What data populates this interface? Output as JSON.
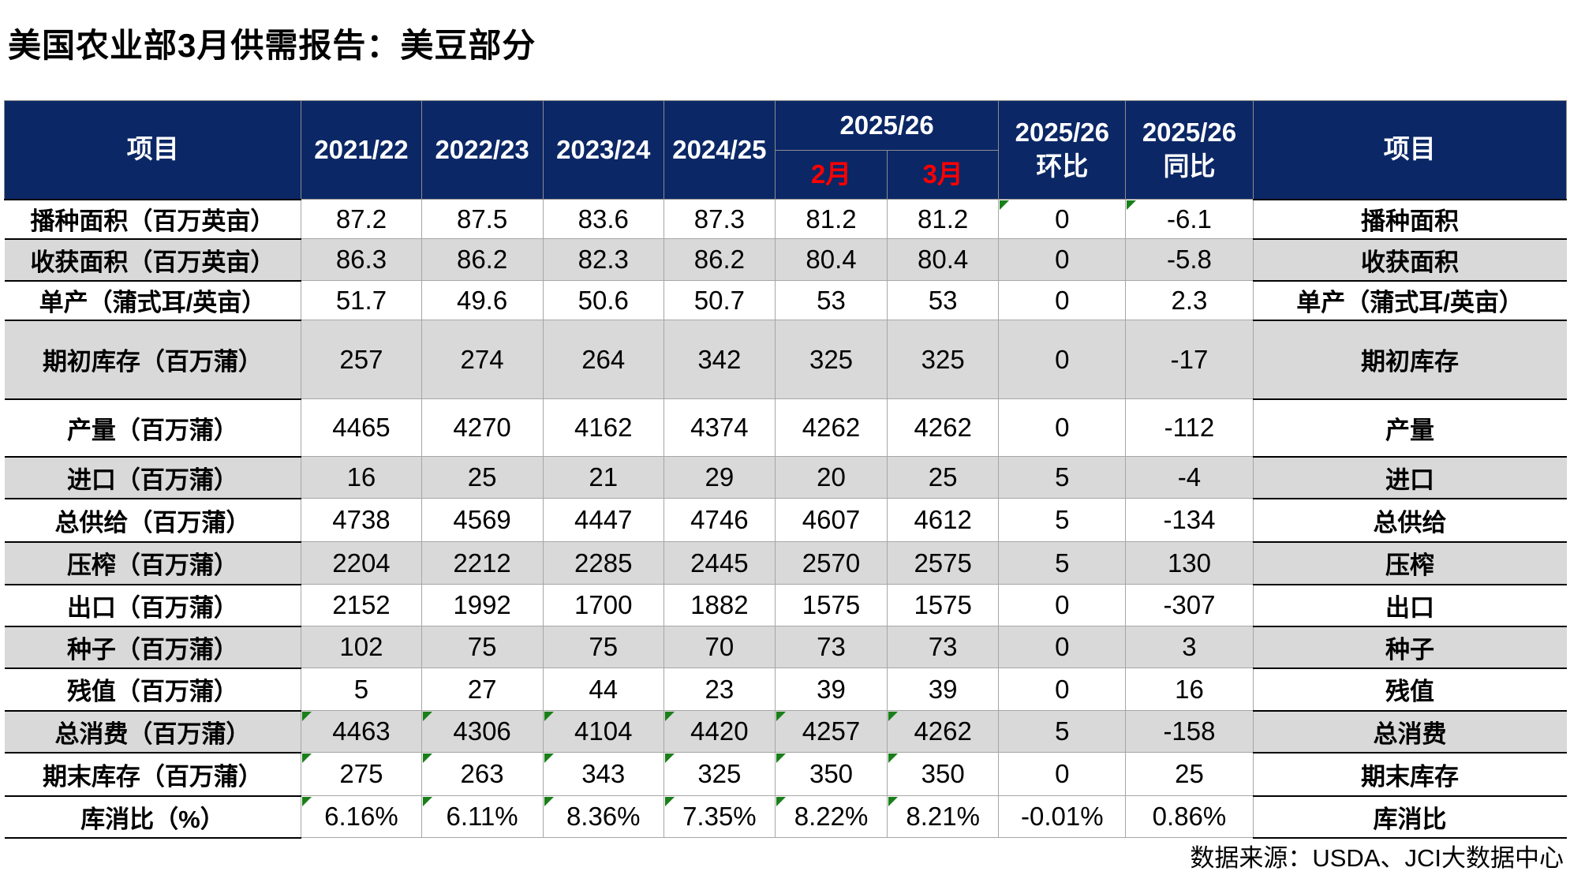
{
  "title": "美国农业部3月供需报告：美豆部分",
  "footer": "数据来源：USDA、JCI大数据中心",
  "colors": {
    "header_bg": "#0b2766",
    "month_red": "#ff0000",
    "row_shade": "#d9d9d9",
    "flag_green": "#1a7f1a"
  },
  "table": {
    "header": {
      "item_left": "项目",
      "years": [
        "2021/22",
        "2022/23",
        "2023/24",
        "2024/25"
      ],
      "group_2526": "2025/26",
      "months": [
        "2月",
        "3月"
      ],
      "mom": [
        "2025/26",
        "环比"
      ],
      "yoy": [
        "2025/26",
        "同比"
      ],
      "item_right": "项目"
    },
    "rows": [
      {
        "label": "播种面积（百万英亩）",
        "values": [
          "87.2",
          "87.5",
          "83.6",
          "87.3",
          "81.2",
          "81.2",
          "0",
          "-6.1"
        ],
        "label_right": "播种面积",
        "shaded": false,
        "flags": [
          6,
          7
        ]
      },
      {
        "label": "收获面积（百万英亩）",
        "values": [
          "86.3",
          "86.2",
          "82.3",
          "86.2",
          "80.4",
          "80.4",
          "0",
          "-5.8"
        ],
        "label_right": "收获面积",
        "shaded": true,
        "flags": []
      },
      {
        "label": "单产（蒲式耳/英亩）",
        "values": [
          "51.7",
          "49.6",
          "50.6",
          "50.7",
          "53",
          "53",
          "0",
          "2.3"
        ],
        "label_right": "单产（蒲式耳/英亩）",
        "shaded": false,
        "flags": []
      },
      {
        "label": "期初库存（百万蒲）",
        "values": [
          "257",
          "274",
          "264",
          "342",
          "325",
          "325",
          "0",
          "-17"
        ],
        "label_right": "期初库存",
        "shaded": true,
        "flags": []
      },
      {
        "label": "产量（百万蒲）",
        "values": [
          "4465",
          "4270",
          "4162",
          "4374",
          "4262",
          "4262",
          "0",
          "-112"
        ],
        "label_right": "产量",
        "shaded": false,
        "flags": []
      },
      {
        "label": "进口（百万蒲）",
        "values": [
          "16",
          "25",
          "21",
          "29",
          "20",
          "25",
          "5",
          "-4"
        ],
        "label_right": "进口",
        "shaded": true,
        "flags": []
      },
      {
        "label": "总供给（百万蒲）",
        "values": [
          "4738",
          "4569",
          "4447",
          "4746",
          "4607",
          "4612",
          "5",
          "-134"
        ],
        "label_right": "总供给",
        "shaded": false,
        "flags": []
      },
      {
        "label": "压榨（百万蒲）",
        "values": [
          "2204",
          "2212",
          "2285",
          "2445",
          "2570",
          "2575",
          "5",
          "130"
        ],
        "label_right": "压榨",
        "shaded": true,
        "flags": []
      },
      {
        "label": "出口（百万蒲）",
        "values": [
          "2152",
          "1992",
          "1700",
          "1882",
          "1575",
          "1575",
          "0",
          "-307"
        ],
        "label_right": "出口",
        "shaded": false,
        "flags": []
      },
      {
        "label": "种子（百万蒲）",
        "values": [
          "102",
          "75",
          "75",
          "70",
          "73",
          "73",
          "0",
          "3"
        ],
        "label_right": "种子",
        "shaded": true,
        "flags": []
      },
      {
        "label": "残值（百万蒲）",
        "values": [
          "5",
          "27",
          "44",
          "23",
          "39",
          "39",
          "0",
          "16"
        ],
        "label_right": "残值",
        "shaded": false,
        "flags": []
      },
      {
        "label": "总消费（百万蒲）",
        "values": [
          "4463",
          "4306",
          "4104",
          "4420",
          "4257",
          "4262",
          "5",
          "-158"
        ],
        "label_right": "总消费",
        "shaded": true,
        "flags": [
          0,
          1,
          2,
          3,
          4,
          5
        ]
      },
      {
        "label": "期末库存（百万蒲）",
        "values": [
          "275",
          "263",
          "343",
          "325",
          "350",
          "350",
          "0",
          "25"
        ],
        "label_right": "期末库存",
        "shaded": false,
        "flags": [
          0,
          1,
          2,
          3,
          4,
          5
        ]
      },
      {
        "label": "库消比（%）",
        "values": [
          "6.16%",
          "6.11%",
          "8.36%",
          "7.35%",
          "8.22%",
          "8.21%",
          "-0.01%",
          "0.86%"
        ],
        "label_right": "库消比",
        "shaded": false,
        "flags": [
          0,
          1,
          2,
          3,
          4,
          5
        ]
      }
    ]
  }
}
